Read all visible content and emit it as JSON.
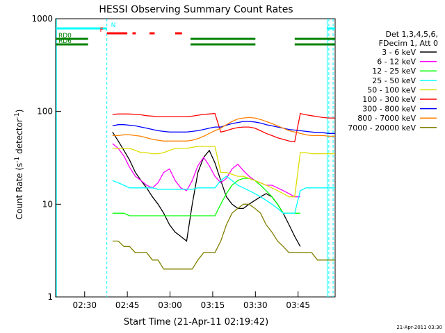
{
  "chart_data": {
    "type": "line",
    "title": "HESSI Observing Summary Count Rates",
    "xlabel": "Start Time (21-Apr-11 02:19:42)",
    "ylabel_main": "Count Rate (s",
    "ylabel_sup1": "-1",
    "ylabel_mid": " detector",
    "ylabel_sup2": "-1",
    "ylabel_end": ")",
    "yscale": "log",
    "ylim": [
      1,
      1000
    ],
    "xlim": [
      2.33,
      3.967
    ],
    "x_ticks": [
      {
        "v": 2.5,
        "label": "02:30"
      },
      {
        "v": 2.75,
        "label": "02:45"
      },
      {
        "v": 3.0,
        "label": "03:00"
      },
      {
        "v": 3.25,
        "label": "03:15"
      },
      {
        "v": 3.5,
        "label": "03:30"
      },
      {
        "v": 3.75,
        "label": "03:45"
      }
    ],
    "y_ticks": [
      {
        "v": 1,
        "label": "1"
      },
      {
        "v": 10,
        "label": "10"
      },
      {
        "v": 100,
        "label": "100"
      },
      {
        "v": 1000,
        "label": "1000"
      }
    ],
    "legend_header": [
      "Det 1,3,4,5,6,",
      "FDecim 1, Att 0"
    ],
    "series": [
      {
        "name": "3 - 6 keV",
        "color": "#000000",
        "y": [
          null,
          null,
          null,
          null,
          null,
          null,
          null,
          null,
          null,
          null,
          60,
          48,
          38,
          30,
          22,
          18,
          15,
          12,
          10,
          8,
          6,
          5,
          4.5,
          4,
          10,
          22,
          32,
          38,
          28,
          18,
          12,
          10,
          9,
          9,
          10,
          11,
          12,
          13,
          12,
          10,
          8,
          6,
          4.5,
          3.5,
          null,
          null,
          null,
          null,
          null,
          null
        ]
      },
      {
        "name": "6 - 12 keV",
        "color": "#ff00ff",
        "y": [
          null,
          null,
          null,
          null,
          null,
          null,
          null,
          null,
          null,
          null,
          45,
          40,
          33,
          25,
          20,
          18,
          16,
          15,
          17,
          22,
          24,
          18,
          15,
          14,
          18,
          26,
          32,
          26,
          20,
          17,
          19,
          24,
          27,
          23,
          20,
          18,
          17,
          16,
          16,
          15,
          14,
          13,
          12,
          12,
          null,
          null,
          null,
          null,
          null,
          null
        ]
      },
      {
        "name": "12 - 25 keV",
        "color": "#00ff00",
        "y": [
          null,
          null,
          null,
          null,
          null,
          null,
          null,
          null,
          null,
          null,
          8,
          8,
          8,
          7.5,
          7.5,
          7.5,
          7.5,
          7.5,
          7.5,
          7.5,
          7.5,
          7.5,
          7.5,
          7.5,
          7.5,
          7.5,
          7.5,
          7.5,
          7.5,
          10,
          13,
          16,
          18,
          19,
          19,
          18,
          16,
          14,
          12,
          10,
          8,
          8,
          8,
          8,
          null,
          null,
          null,
          null,
          null,
          null
        ]
      },
      {
        "name": "25 - 50 keV",
        "color": "#00ffff",
        "y": [
          null,
          null,
          null,
          null,
          null,
          null,
          null,
          null,
          null,
          null,
          18,
          17,
          16,
          15,
          15,
          15,
          15,
          15,
          14.5,
          14.5,
          14.5,
          14.5,
          14.5,
          14.5,
          14.5,
          15,
          15,
          15,
          15,
          18,
          20,
          18,
          16,
          15,
          14,
          13,
          12,
          11,
          10,
          9,
          8,
          8,
          8,
          14,
          15,
          15,
          15,
          15,
          15,
          15
        ]
      },
      {
        "name": "50 - 100 keV",
        "color": "#dddd00",
        "y": [
          null,
          null,
          null,
          null,
          null,
          null,
          null,
          null,
          null,
          null,
          40,
          40,
          40,
          40,
          38,
          36,
          36,
          35,
          35,
          36,
          38,
          40,
          40,
          40,
          41,
          42,
          42,
          42,
          42,
          22,
          22,
          21,
          20,
          20,
          19,
          18,
          17,
          16,
          15,
          14,
          13,
          12,
          12,
          36,
          36,
          35,
          35,
          35,
          35,
          35
        ]
      },
      {
        "name": "100 - 300 keV",
        "color": "#ff0000",
        "y": [
          null,
          null,
          null,
          null,
          null,
          null,
          null,
          null,
          null,
          null,
          93,
          94,
          94,
          94,
          93,
          92,
          90,
          89,
          88,
          88,
          88,
          88,
          88,
          88,
          89,
          91,
          93,
          94,
          95,
          60,
          62,
          65,
          67,
          68,
          68,
          66,
          62,
          58,
          55,
          52,
          50,
          48,
          47,
          95,
          92,
          90,
          88,
          86,
          85,
          85
        ]
      },
      {
        "name": "300 - 800 keV",
        "color": "#0000ff",
        "y": [
          null,
          null,
          null,
          null,
          null,
          null,
          null,
          null,
          null,
          null,
          70,
          72,
          72,
          71,
          70,
          68,
          66,
          64,
          62,
          61,
          60,
          60,
          60,
          60,
          61,
          62,
          64,
          66,
          68,
          68,
          71,
          74,
          76,
          78,
          78,
          77,
          75,
          72,
          70,
          68,
          66,
          64,
          63,
          62,
          61,
          60,
          59,
          59,
          58,
          58
        ]
      },
      {
        "name": "800 - 7000 keV",
        "color": "#ff8000",
        "y": [
          null,
          null,
          null,
          null,
          null,
          null,
          null,
          null,
          null,
          null,
          55,
          55,
          56,
          56,
          55,
          54,
          52,
          50,
          49,
          48,
          48,
          48,
          48,
          48,
          49,
          51,
          54,
          58,
          62,
          66,
          72,
          78,
          83,
          85,
          86,
          85,
          82,
          78,
          74,
          70,
          66,
          62,
          60,
          58,
          56,
          55,
          55,
          55,
          54,
          54
        ]
      },
      {
        "name": "7000 - 20000 keV",
        "color": "#808000",
        "y": [
          null,
          null,
          null,
          null,
          null,
          null,
          null,
          null,
          null,
          null,
          4,
          4,
          3.5,
          3.5,
          3,
          3,
          3,
          2.5,
          2.5,
          2,
          2,
          2,
          2,
          2,
          2,
          2.5,
          3,
          3,
          3,
          4,
          6,
          8,
          9,
          10,
          10,
          9,
          8,
          6,
          5,
          4,
          3.5,
          3,
          3,
          3,
          3,
          3,
          2.5,
          2.5,
          2.5,
          2.5
        ]
      }
    ],
    "x_values": [
      2.33,
      2.363,
      2.397,
      2.43,
      2.463,
      2.497,
      2.53,
      2.563,
      2.597,
      2.63,
      2.663,
      2.697,
      2.73,
      2.763,
      2.797,
      2.83,
      2.863,
      2.897,
      2.93,
      2.963,
      2.997,
      3.03,
      3.063,
      3.097,
      3.13,
      3.163,
      3.197,
      3.23,
      3.263,
      3.297,
      3.33,
      3.363,
      3.397,
      3.43,
      3.463,
      3.497,
      3.53,
      3.563,
      3.597,
      3.63,
      3.663,
      3.697,
      3.73,
      3.763,
      3.797,
      3.83,
      3.863,
      3.897,
      3.93,
      3.967
    ],
    "status_bars": [
      {
        "name": "N",
        "color": "#00ffff",
        "segments": [
          [
            2.33,
            2.63
          ],
          [
            3.92,
            3.967
          ]
        ]
      },
      {
        "name": "F",
        "color": "#ff0000",
        "segments": [
          [
            2.63,
            2.75
          ],
          [
            2.78,
            2.8
          ],
          [
            2.88,
            2.91
          ],
          [
            3.03,
            3.07
          ]
        ]
      },
      {
        "name": "RD0",
        "color": "#008000",
        "segments": [
          [
            2.33,
            2.52
          ],
          [
            3.12,
            3.5
          ],
          [
            3.73,
            3.967
          ]
        ]
      },
      {
        "name": "RD6",
        "color": "#008000",
        "segments": [
          [
            2.33,
            2.52
          ],
          [
            3.12,
            3.5
          ],
          [
            3.73,
            3.967
          ]
        ]
      }
    ],
    "vlines": [
      {
        "x": 2.335,
        "color": "#00ffff",
        "dashed": false
      },
      {
        "x": 2.63,
        "color": "#00ffff",
        "dashed": true
      },
      {
        "x": 3.92,
        "color": "#00ffff",
        "dashed": false
      },
      {
        "x": 3.93,
        "color": "#00ffff",
        "dashed": true
      },
      {
        "x": 3.955,
        "color": "#00ffff",
        "dashed": true
      }
    ],
    "footer_date": "21-Apr-2011 03:30"
  }
}
